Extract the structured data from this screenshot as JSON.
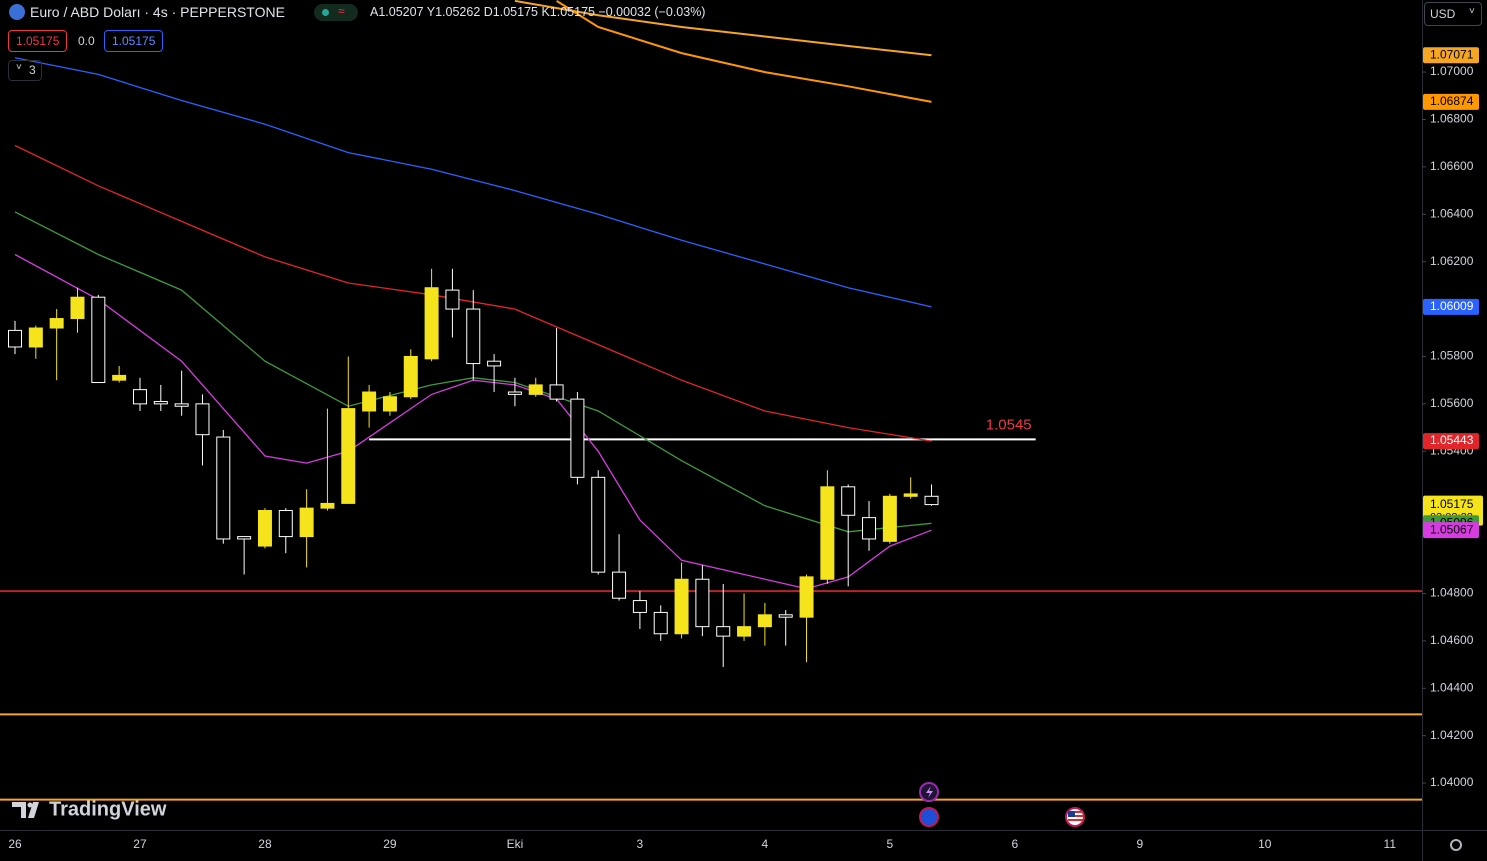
{
  "header": {
    "symbol": "Euro / ABD Doları · 4s · PEPPERSTONE",
    "ohlc": "A1.05207 Y1.05262 D1.05175 K1.05175 −0.00032 (−0.03%)",
    "sell": "1.05175",
    "spread": "0.0",
    "buy": "1.05175",
    "indicators": "3",
    "currency": "USD",
    "brand": "TradingView"
  },
  "chart_data": {
    "type": "candlestick",
    "categories": [
      "26",
      null,
      null,
      null,
      null,
      null,
      "27",
      null,
      null,
      null,
      null,
      null,
      "28",
      null,
      null,
      null,
      null,
      null,
      "29",
      null,
      null,
      null,
      null,
      null,
      "Eki",
      null,
      null,
      null,
      null,
      null,
      "3",
      null,
      null,
      null,
      null,
      null,
      "4",
      null,
      null,
      null,
      null,
      null,
      "5",
      null,
      null,
      null,
      null,
      null,
      "6",
      null,
      null,
      null,
      null,
      null,
      "9",
      null,
      null,
      null,
      null,
      null,
      "10",
      null,
      null,
      null,
      null,
      null,
      "11"
    ],
    "open": [
      1.0591,
      1.0584,
      1.0592,
      1.0596,
      1.0605,
      1.057,
      1.0566,
      1.0561,
      1.056,
      1.056,
      1.0546,
      1.0504,
      1.05,
      1.0515,
      1.0504,
      1.0516,
      1.0518,
      1.0557,
      1.0557,
      1.0563,
      1.0579,
      1.0608,
      1.06,
      1.0578,
      1.0565,
      1.0564,
      1.0568,
      1.0562,
      1.0529,
      1.0489,
      1.0477,
      1.0472,
      1.0463,
      1.0486,
      1.0466,
      1.0462,
      1.0466,
      1.0471,
      1.047,
      1.0486,
      1.0525,
      1.0512,
      1.0502,
      1.0521,
      1.0521,
      null,
      null,
      null,
      null,
      null,
      null,
      null,
      null,
      null,
      null,
      null,
      null,
      null,
      null,
      null,
      null,
      null,
      null,
      null,
      null,
      null,
      null
    ],
    "high": [
      1.0595,
      1.0593,
      1.06,
      1.0609,
      1.0606,
      1.0576,
      1.0571,
      1.0568,
      1.0574,
      1.0564,
      1.0549,
      1.0504,
      1.0516,
      1.0516,
      1.0524,
      1.0558,
      1.058,
      1.0568,
      1.0565,
      1.0583,
      1.0617,
      1.0617,
      1.0608,
      1.0581,
      1.0571,
      1.0571,
      1.0592,
      1.0565,
      1.0532,
      1.0505,
      1.0481,
      1.0475,
      1.0493,
      1.0492,
      1.0484,
      1.048,
      1.0476,
      1.0473,
      1.0488,
      1.0532,
      1.0526,
      1.0519,
      1.0522,
      1.0529,
      1.0526,
      null,
      null,
      null,
      null,
      null,
      null,
      null,
      null,
      null,
      null,
      null,
      null,
      null,
      null,
      null,
      null,
      null,
      null,
      null,
      null,
      null,
      null
    ],
    "low": [
      1.0581,
      1.0579,
      1.057,
      1.059,
      1.0569,
      1.0569,
      1.0557,
      1.0557,
      1.0555,
      1.0534,
      1.0501,
      1.0488,
      1.0499,
      1.0497,
      1.0491,
      1.0515,
      1.0518,
      1.055,
      1.0555,
      1.0562,
      1.0578,
      1.0588,
      1.057,
      1.0565,
      1.0559,
      1.0563,
      1.0561,
      1.0526,
      1.0488,
      1.0477,
      1.0465,
      1.046,
      1.0461,
      1.0462,
      1.0449,
      1.046,
      1.0458,
      1.0458,
      1.0451,
      1.0484,
      1.0483,
      1.0498,
      1.0501,
      1.052,
      1.0517,
      null,
      null,
      null,
      null,
      null,
      null,
      null,
      null,
      null,
      null,
      null,
      null,
      null,
      null,
      null,
      null,
      null,
      null,
      null,
      null,
      null,
      null
    ],
    "close": [
      1.0584,
      1.0592,
      1.0596,
      1.0605,
      1.0569,
      1.0572,
      1.056,
      1.056,
      1.0559,
      1.0547,
      1.0503,
      1.0503,
      1.0515,
      1.0504,
      1.0516,
      1.0518,
      1.0558,
      1.0565,
      1.0563,
      1.058,
      1.0609,
      1.06,
      1.0577,
      1.0576,
      1.0564,
      1.0568,
      1.0562,
      1.0529,
      1.0489,
      1.0478,
      1.0472,
      1.0463,
      1.0486,
      1.0466,
      1.0462,
      1.0466,
      1.0471,
      1.047,
      1.0487,
      1.0525,
      1.0513,
      1.0503,
      1.0521,
      1.0522,
      1.05175,
      null,
      null,
      null,
      null,
      null,
      null,
      null,
      null,
      null,
      null,
      null,
      null,
      null,
      null,
      null,
      null,
      null,
      null,
      null,
      null,
      null,
      null
    ],
    "up_color": "#f5e31c",
    "down_color": "#ffffff",
    "countdown": "03:02:22",
    "series": [
      {
        "type": "line",
        "color": "#f5a623",
        "x": [
          24,
          28,
          32,
          36,
          40,
          44
        ],
        "values": [
          1.073,
          1.0724,
          1.0719,
          1.0715,
          1.0711,
          1.07071
        ]
      },
      {
        "type": "line",
        "color": "#ff9800",
        "x": [
          26,
          28,
          32,
          36,
          40,
          44
        ],
        "values": [
          1.073,
          1.0719,
          1.0708,
          1.07,
          1.0694,
          1.06874
        ]
      },
      {
        "type": "line",
        "color": "#2962ff",
        "x": [
          0,
          4,
          8,
          12,
          16,
          20,
          24,
          28,
          32,
          36,
          40,
          44
        ],
        "values": [
          1.0706,
          1.0699,
          1.0688,
          1.0678,
          1.0666,
          1.0659,
          1.065,
          1.064,
          1.0629,
          1.0619,
          1.0609,
          1.06009
        ]
      },
      {
        "type": "line",
        "color": "#e0262b",
        "x": [
          0,
          4,
          8,
          12,
          16,
          20,
          24,
          28,
          32,
          36,
          40,
          44
        ],
        "values": [
          1.0669,
          1.0652,
          1.0637,
          1.0622,
          1.0611,
          1.0606,
          1.06,
          1.0585,
          1.057,
          1.0557,
          1.055,
          1.05443
        ]
      },
      {
        "type": "line",
        "color": "#3f9a3c",
        "x": [
          0,
          4,
          8,
          12,
          16,
          20,
          22,
          24,
          28,
          32,
          36,
          40,
          44
        ],
        "values": [
          1.0641,
          1.0623,
          1.0608,
          1.0578,
          1.0559,
          1.0568,
          1.0571,
          1.0569,
          1.0557,
          1.0536,
          1.0517,
          1.0506,
          1.05096
        ]
      },
      {
        "type": "line",
        "color": "#d63ce0",
        "x": [
          0,
          4,
          8,
          12,
          14,
          16,
          20,
          22,
          24,
          26,
          28,
          30,
          32,
          36,
          38,
          40,
          42,
          44
        ],
        "values": [
          1.0623,
          1.0604,
          1.0578,
          1.0538,
          1.0535,
          1.054,
          1.0564,
          1.057,
          1.0568,
          1.0562,
          1.054,
          1.0511,
          1.0494,
          1.0486,
          1.0482,
          1.0487,
          1.05,
          1.05067
        ]
      }
    ],
    "hlines": [
      {
        "value": 1.0545,
        "color": "#ffffff",
        "label": "1.0545",
        "label_color": "#f23645",
        "start": 17,
        "end": 49
      },
      {
        "value": 1.0481,
        "color": "#b8232d"
      },
      {
        "value": 1.0429,
        "color": "#f5a623"
      },
      {
        "value": 1.0393,
        "color": "#f5a623"
      }
    ],
    "ylim": [
      1.03802,
      1.07304
    ],
    "yticks": [
      {
        "value": 1.07,
        "label": "1.07000"
      },
      {
        "value": 1.068,
        "label": "1.06800"
      },
      {
        "value": 1.066,
        "label": "1.06600"
      },
      {
        "value": 1.064,
        "label": "1.06400"
      },
      {
        "value": 1.062,
        "label": "1.06200"
      },
      {
        "value": 1.058,
        "label": "1.05800"
      },
      {
        "value": 1.056,
        "label": "1.05600"
      },
      {
        "value": 1.054,
        "label": "1.05400"
      },
      {
        "value": 1.048,
        "label": "1.04800"
      },
      {
        "value": 1.046,
        "label": "1.04600"
      },
      {
        "value": 1.044,
        "label": "1.04400"
      },
      {
        "value": 1.042,
        "label": "1.04200"
      },
      {
        "value": 1.04,
        "label": "1.04000"
      }
    ]
  }
}
